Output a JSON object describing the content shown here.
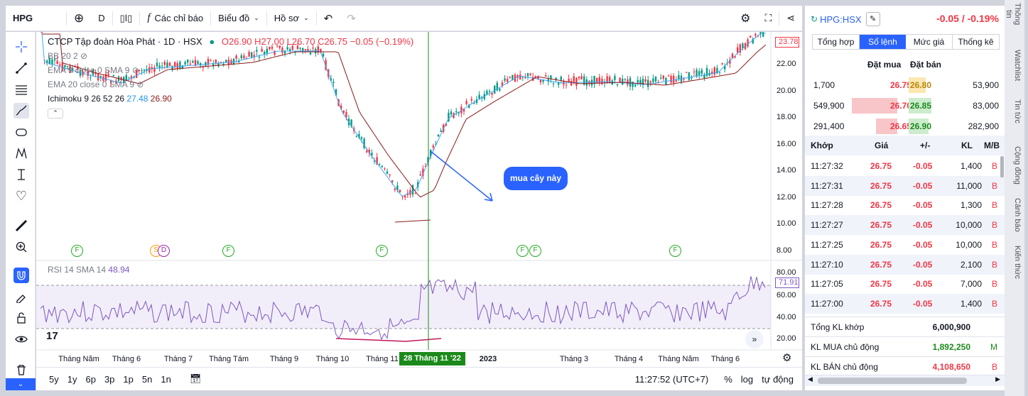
{
  "toolbar": {
    "symbol": "HPG",
    "interval": "D",
    "indicators_label": "Các chỉ báo",
    "charts_label": "Biểu đồ",
    "profile_label": "Hồ sơ"
  },
  "legend": {
    "title": "CTCP Tập đoàn Hòa Phát · 1D · HSX",
    "open": "O26.90",
    "high": "H27.00",
    "low": "L26.70",
    "close": "C26.75",
    "change": "−0.05 (−0.19%)",
    "bb": "BB 20 2",
    "ema9": "EMA 9 close 0 SMA 9",
    "ema20": "EMA 20 close 0 SMA 9",
    "ichimoku": "Ichimoku 9 26 52 26",
    "ichi_v1": "27.48",
    "ichi_v2": "26.90",
    "rsi": "RSI 14 SMA 14",
    "rsi_v": "48.94"
  },
  "price_axis": [
    "22.00",
    "20.00",
    "18.00",
    "16.00",
    "14.00",
    "12.00",
    "10.00",
    "8.00"
  ],
  "price_current": "23.78",
  "rsi_axis": [
    "80.00",
    "60.00",
    "40.00",
    "20.00"
  ],
  "rsi_current": "71.91",
  "time_axis": [
    "Tháng Năm",
    "Tháng 6",
    "Tháng 7",
    "Tháng Tám",
    "Tháng 9",
    "Tháng 10",
    "Tháng 11",
    "2023",
    "Tháng 3",
    "Tháng 4",
    "Tháng Năm",
    "Tháng 6"
  ],
  "crosshair_date": "28 Tháng 11 '22",
  "annotation": "mua cây này",
  "bottombar": {
    "ranges": [
      "5y",
      "1y",
      "6p",
      "3p",
      "1p",
      "5n",
      "1n"
    ],
    "time": "11:27:52 (UTC+7)",
    "percent": "%",
    "log": "log",
    "auto": "tự động"
  },
  "panel": {
    "symbol": "HPG:HSX",
    "change": "-0.05 / -0.19%",
    "tabs": [
      "Tổng hợp",
      "Sổ lệnh",
      "Mức giá",
      "Thống kê"
    ],
    "ob_header_buy": "Đặt mua",
    "ob_header_sell": "Đặt bán",
    "orderbook": [
      {
        "bvol": "1,700",
        "bid": "26.75",
        "ask": "26.80",
        "avol": "53,900"
      },
      {
        "bvol": "549,900",
        "bid": "26.70",
        "ask": "26.85",
        "avol": "83,000"
      },
      {
        "bvol": "291,400",
        "bid": "26.65",
        "ask": "26.90",
        "avol": "282,900"
      }
    ],
    "trade_headers": [
      "Khớp",
      "Giá",
      "+/-",
      "KL",
      "M/B"
    ],
    "trades": [
      {
        "t": "11:27:32",
        "p": "26.75",
        "c": "-0.05",
        "v": "1,400",
        "s": "B"
      },
      {
        "t": "11:27:31",
        "p": "26.75",
        "c": "-0.05",
        "v": "11,000",
        "s": "B"
      },
      {
        "t": "11:27:28",
        "p": "26.75",
        "c": "-0.05",
        "v": "1,300",
        "s": "B"
      },
      {
        "t": "11:27:27",
        "p": "26.75",
        "c": "-0.05",
        "v": "10,000",
        "s": "B"
      },
      {
        "t": "11:27:25",
        "p": "26.75",
        "c": "-0.05",
        "v": "10,000",
        "s": "B"
      },
      {
        "t": "11:27:10",
        "p": "26.75",
        "c": "-0.05",
        "v": "2,100",
        "s": "B"
      },
      {
        "t": "11:27:05",
        "p": "26.75",
        "c": "-0.05",
        "v": "7,000",
        "s": "B"
      },
      {
        "t": "11:27:00",
        "p": "26.75",
        "c": "-0.05",
        "v": "1,400",
        "s": "B"
      }
    ],
    "summary": [
      {
        "label": "Tổng KL khớp",
        "value": "6,000,900",
        "flag": ""
      },
      {
        "label": "KL MUA chủ động",
        "value": "1,892,250",
        "flag": "M"
      },
      {
        "label": "KL BÁN chủ động",
        "value": "4,108,650",
        "flag": "B"
      }
    ]
  },
  "side_tabs": [
    "Thông tin",
    "Watchlist",
    "Tin tức",
    "Cộng đồng",
    "Cảnh báo",
    "Kiến thức"
  ]
}
